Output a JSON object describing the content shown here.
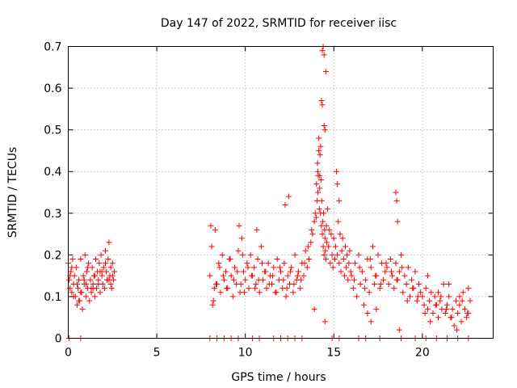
{
  "chart_data": {
    "type": "scatter",
    "title": "Day 147 of 2022, SRMTID for receiver iisc",
    "xlabel": "GPS time / hours",
    "ylabel": "SRMTID / TECUs",
    "xlim": [
      0,
      24
    ],
    "ylim": [
      0,
      0.7
    ],
    "xticks": [
      0,
      5,
      10,
      15,
      20
    ],
    "xtick_labels": [
      "0",
      "5",
      "10",
      "15",
      "20"
    ],
    "yticks": [
      0,
      0.1,
      0.2,
      0.3,
      0.4,
      0.5,
      0.6,
      0.7
    ],
    "ytick_labels": [
      "0",
      "0.1",
      "0.2",
      "0.3",
      "0.4",
      "0.5",
      "0.6",
      "0.7"
    ],
    "grid": true,
    "marker": "plus",
    "color": "#ff0000",
    "series": [
      {
        "name": "SRMTID",
        "x": [
          0.0,
          0.05,
          0.1,
          0.15,
          0.2,
          0.25,
          0.3,
          0.35,
          0.4,
          0.45,
          0.5,
          0.55,
          0.6,
          0.65,
          0.7,
          0.75,
          0.8,
          0.85,
          0.9,
          0.95,
          1.0,
          1.05,
          1.1,
          1.15,
          1.2,
          1.25,
          1.3,
          1.35,
          1.4,
          1.45,
          1.5,
          1.55,
          1.6,
          1.65,
          1.7,
          1.75,
          1.8,
          1.85,
          1.9,
          1.95,
          2.0,
          2.05,
          2.1,
          2.15,
          2.2,
          2.25,
          2.3,
          2.35,
          2.4,
          2.45,
          2.5,
          2.55,
          2.6,
          0.1,
          0.3,
          0.5,
          0.7,
          0.9,
          1.1,
          1.3,
          1.5,
          1.7,
          1.9,
          2.1,
          2.3,
          2.5,
          0.2,
          0.6,
          1.0,
          1.4,
          1.8,
          2.2,
          2.4,
          8.0,
          8.1,
          8.2,
          8.3,
          8.4,
          8.5,
          8.6,
          8.7,
          8.8,
          8.9,
          9.0,
          9.1,
          9.2,
          9.3,
          9.4,
          9.5,
          9.6,
          9.7,
          9.8,
          9.9,
          10.0,
          10.1,
          10.2,
          10.3,
          10.4,
          10.5,
          10.6,
          10.7,
          10.8,
          10.9,
          11.0,
          11.1,
          11.2,
          11.3,
          11.4,
          11.5,
          11.6,
          11.7,
          11.8,
          11.9,
          12.0,
          12.1,
          12.2,
          12.3,
          12.4,
          12.5,
          12.6,
          12.7,
          12.8,
          12.9,
          13.0,
          13.1,
          13.2,
          13.3,
          13.4,
          13.5,
          13.6,
          13.7,
          13.8,
          13.9,
          8.15,
          8.35,
          8.55,
          8.75,
          8.95,
          9.15,
          9.35,
          9.55,
          9.75,
          9.95,
          10.15,
          10.35,
          10.55,
          10.75,
          10.95,
          11.15,
          11.35,
          11.55,
          11.75,
          11.95,
          12.15,
          12.35,
          12.55,
          12.75,
          12.95,
          13.15,
          13.35,
          13.55,
          13.75,
          8.05,
          8.25,
          9.65,
          9.85,
          12.25,
          12.45,
          10.65,
          13.95,
          14.0,
          14.02,
          14.05,
          14.08,
          14.1,
          14.12,
          14.15,
          14.18,
          14.2,
          14.22,
          14.25,
          14.28,
          14.3,
          14.32,
          14.35,
          14.38,
          14.4,
          14.42,
          14.45,
          14.48,
          14.5,
          14.52,
          14.55,
          14.58,
          14.6,
          14.65,
          14.7,
          14.75,
          14.8,
          14.85,
          14.9,
          14.95,
          15.0,
          15.05,
          15.1,
          15.15,
          15.2,
          15.25,
          15.3,
          15.35,
          15.4,
          15.45,
          15.5,
          15.55,
          15.6,
          15.65,
          15.7,
          15.75,
          15.8,
          15.85,
          15.9,
          15.95,
          14.3,
          14.35,
          14.4,
          14.45,
          14.5,
          14.55,
          14.35,
          14.45,
          14.15,
          14.25,
          14.1,
          14.2,
          13.9,
          14.5,
          15.2,
          15.3,
          16.0,
          16.1,
          16.2,
          16.3,
          16.4,
          16.5,
          16.6,
          16.7,
          16.8,
          16.9,
          17.0,
          17.1,
          17.2,
          17.3,
          17.4,
          17.5,
          17.6,
          17.7,
          17.8,
          17.9,
          18.0,
          18.1,
          18.2,
          18.3,
          18.4,
          18.5,
          18.6,
          18.7,
          18.8,
          18.9,
          19.0,
          19.1,
          19.2,
          19.3,
          19.4,
          19.5,
          19.6,
          19.7,
          19.8,
          19.9,
          16.15,
          16.45,
          16.75,
          17.05,
          17.35,
          17.65,
          17.95,
          18.25,
          18.55,
          18.85,
          19.15,
          19.45,
          19.75,
          18.5,
          18.55,
          18.6,
          17.1,
          17.4,
          16.9,
          18.7,
          20.0,
          20.1,
          20.2,
          20.3,
          20.4,
          20.5,
          20.6,
          20.7,
          20.8,
          20.9,
          21.0,
          21.1,
          21.2,
          21.3,
          21.4,
          21.5,
          21.6,
          21.7,
          21.8,
          21.9,
          22.0,
          22.1,
          22.2,
          22.3,
          22.4,
          22.5,
          22.6,
          22.7,
          20.15,
          20.45,
          20.75,
          21.05,
          21.35,
          21.65,
          21.95,
          22.25,
          22.55,
          20.3,
          20.9,
          21.5,
          22.1,
          22.6,
          0.05,
          0.7,
          8.0,
          8.4,
          8.8,
          9.2,
          9.6,
          10.4,
          10.8,
          11.6,
          12.0,
          12.4,
          12.8,
          13.2,
          14.9,
          15.3,
          16.4,
          16.8,
          17.6,
          18.8,
          19.6,
          20.2,
          20.8,
          21.4,
          22.0,
          22.6
        ],
        "y": [
          0.18,
          0.14,
          0.12,
          0.16,
          0.11,
          0.19,
          0.13,
          0.15,
          0.1,
          0.17,
          0.08,
          0.12,
          0.14,
          0.09,
          0.19,
          0.11,
          0.07,
          0.15,
          0.13,
          0.2,
          0.1,
          0.16,
          0.12,
          0.18,
          0.09,
          0.14,
          0.11,
          0.17,
          0.13,
          0.15,
          0.1,
          0.19,
          0.12,
          0.16,
          0.14,
          0.18,
          0.11,
          0.2,
          0.15,
          0.13,
          0.17,
          0.12,
          0.21,
          0.16,
          0.14,
          0.19,
          0.23,
          0.15,
          0.17,
          0.12,
          0.18,
          0.14,
          0.16,
          0.15,
          0.1,
          0.13,
          0.11,
          0.14,
          0.17,
          0.12,
          0.15,
          0.13,
          0.16,
          0.18,
          0.14,
          0.15,
          0.17,
          0.09,
          0.13,
          0.12,
          0.16,
          0.14,
          0.13,
          0.15,
          0.22,
          0.09,
          0.26,
          0.13,
          0.18,
          0.11,
          0.2,
          0.14,
          0.16,
          0.12,
          0.19,
          0.15,
          0.1,
          0.17,
          0.13,
          0.21,
          0.11,
          0.24,
          0.16,
          0.14,
          0.18,
          0.12,
          0.2,
          0.15,
          0.17,
          0.13,
          0.19,
          0.11,
          0.22,
          0.14,
          0.16,
          0.12,
          0.18,
          0.15,
          0.13,
          0.17,
          0.11,
          0.19,
          0.14,
          0.16,
          0.12,
          0.18,
          0.1,
          0.15,
          0.13,
          0.17,
          0.11,
          0.2,
          0.14,
          0.16,
          0.12,
          0.18,
          0.15,
          0.21,
          0.17,
          0.19,
          0.23,
          0.25,
          0.28,
          0.08,
          0.13,
          0.17,
          0.15,
          0.12,
          0.19,
          0.14,
          0.16,
          0.13,
          0.11,
          0.17,
          0.15,
          0.12,
          0.14,
          0.18,
          0.16,
          0.13,
          0.15,
          0.11,
          0.17,
          0.14,
          0.12,
          0.16,
          0.13,
          0.15,
          0.14,
          0.18,
          0.22,
          0.26,
          0.27,
          0.12,
          0.27,
          0.2,
          0.32,
          0.34,
          0.26,
          0.3,
          0.29,
          0.37,
          0.33,
          0.42,
          0.35,
          0.39,
          0.48,
          0.31,
          0.36,
          0.44,
          0.3,
          0.38,
          0.27,
          0.33,
          0.25,
          0.28,
          0.22,
          0.3,
          0.2,
          0.26,
          0.24,
          0.21,
          0.19,
          0.27,
          0.23,
          0.31,
          0.22,
          0.26,
          0.18,
          0.25,
          0.2,
          0.17,
          0.24,
          0.19,
          0.22,
          0.4,
          0.2,
          0.28,
          0.18,
          0.25,
          0.16,
          0.21,
          0.24,
          0.19,
          0.15,
          0.22,
          0.17,
          0.2,
          0.14,
          0.18,
          0.21,
          0.16,
          0.57,
          0.69,
          0.7,
          0.68,
          0.5,
          0.64,
          0.56,
          0.51,
          0.45,
          0.46,
          0.4,
          0.39,
          0.07,
          0.04,
          0.37,
          0.33,
          0.15,
          0.12,
          0.18,
          0.1,
          0.2,
          0.13,
          0.16,
          0.08,
          0.14,
          0.19,
          0.11,
          0.17,
          0.22,
          0.13,
          0.15,
          0.2,
          0.12,
          0.18,
          0.14,
          0.16,
          0.17,
          0.13,
          0.19,
          0.15,
          0.12,
          0.18,
          0.14,
          0.16,
          0.2,
          0.11,
          0.15,
          0.13,
          0.17,
          0.1,
          0.14,
          0.12,
          0.16,
          0.09,
          0.13,
          0.11,
          0.14,
          0.17,
          0.12,
          0.19,
          0.15,
          0.13,
          0.18,
          0.16,
          0.14,
          0.17,
          0.09,
          0.12,
          0.1,
          0.35,
          0.33,
          0.28,
          0.04,
          0.07,
          0.06,
          0.02,
          0.1,
          0.08,
          0.12,
          0.07,
          0.09,
          0.11,
          0.06,
          0.1,
          0.08,
          0.05,
          0.09,
          0.07,
          0.13,
          0.06,
          0.08,
          0.1,
          0.05,
          0.07,
          0.03,
          0.09,
          0.06,
          0.08,
          0.04,
          0.11,
          0.07,
          0.05,
          0.12,
          0.09,
          0.06,
          0.04,
          0.08,
          0.1,
          0.07,
          0.05,
          0.02,
          0.09,
          0.06,
          0.15,
          0.11,
          0.13,
          0.1,
          0.06,
          0.0,
          0.0,
          0.0,
          0.0,
          0.0,
          0.0,
          0.0,
          0.0,
          0.0,
          0.0,
          0.0,
          0.0,
          0.0,
          0.0,
          0.0,
          0.0,
          0.0,
          0.0,
          0.0,
          0.0,
          0.0,
          0.0,
          0.0,
          0.0,
          0.0,
          0.0
        ]
      }
    ]
  }
}
